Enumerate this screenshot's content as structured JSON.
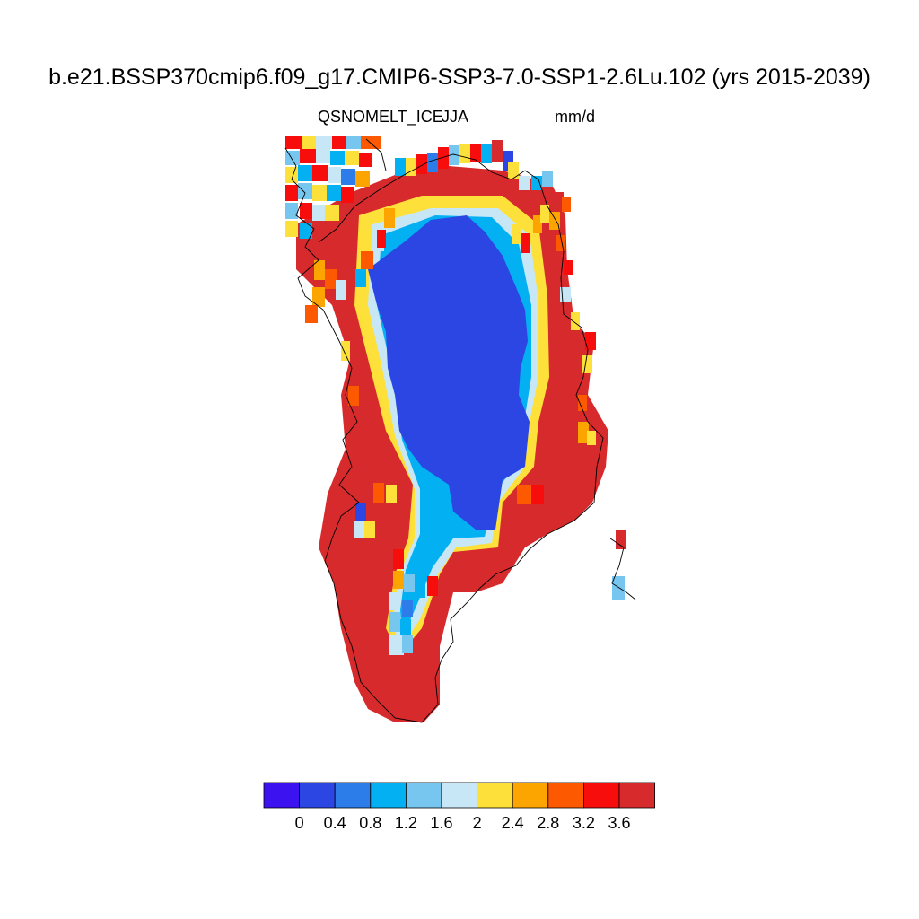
{
  "title": "b.e21.BSSP370cmip6.f09_g17.CMIP6-SSP3-7.0-SSP1-2.6Lu.102 (yrs 2015-2039)",
  "variable": "QSNOMELT_ICE",
  "season": "JJA",
  "units": "mm/d",
  "colorbar": {
    "colors": [
      "#3c12f0",
      "#2b46e3",
      "#2c7de9",
      "#03b0f2",
      "#77c6ef",
      "#c8e7f6",
      "#fde03a",
      "#fca500",
      "#fd5901",
      "#f80d0d",
      "#d62a2c"
    ],
    "labels": [
      "0",
      "0.4",
      "0.8",
      "1.2",
      "1.6",
      "2",
      "2.4",
      "2.8",
      "3.2",
      "3.6"
    ]
  },
  "map": {
    "region": "Greenland",
    "interior_color": "#2b46e3",
    "margin_color": "#d62a2c"
  }
}
